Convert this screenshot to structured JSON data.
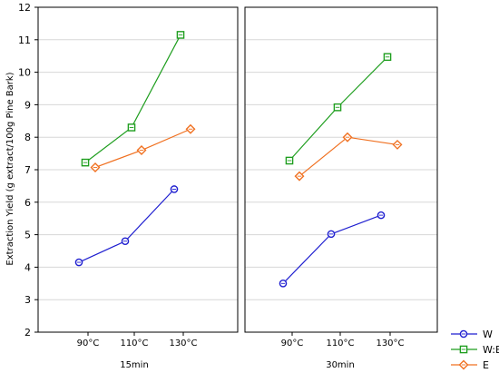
{
  "chart_data": {
    "type": "line",
    "ylabel": "Extraction Yield (g extract/100g Pine Bark)",
    "ylim": [
      2,
      12
    ],
    "yticks": [
      2,
      3,
      4,
      5,
      6,
      7,
      8,
      9,
      10,
      11,
      12
    ],
    "grid": true,
    "legend_position": "bottom-right",
    "categories": [
      "90°C",
      "110°C",
      "130°C"
    ],
    "panels": [
      {
        "label": "15min",
        "series": [
          {
            "name": "W",
            "values": [
              4.15,
              4.8,
              6.4
            ]
          },
          {
            "name": "W:E",
            "values": [
              7.22,
              8.3,
              11.15
            ]
          },
          {
            "name": "E",
            "values": [
              7.07,
              7.6,
              8.25
            ]
          }
        ]
      },
      {
        "label": "30min",
        "series": [
          {
            "name": "W",
            "values": [
              3.5,
              5.02,
              5.6
            ]
          },
          {
            "name": "W:E",
            "values": [
              7.28,
              8.92,
              10.47
            ]
          },
          {
            "name": "E",
            "values": [
              6.8,
              8.0,
              7.77
            ]
          }
        ]
      }
    ],
    "series_styles": [
      {
        "name": "W",
        "color": "#1f1fd0",
        "marker": "circle"
      },
      {
        "name": "W:E",
        "color": "#1f9e1f",
        "marker": "square"
      },
      {
        "name": "E",
        "color": "#f07020",
        "marker": "diamond"
      }
    ]
  }
}
